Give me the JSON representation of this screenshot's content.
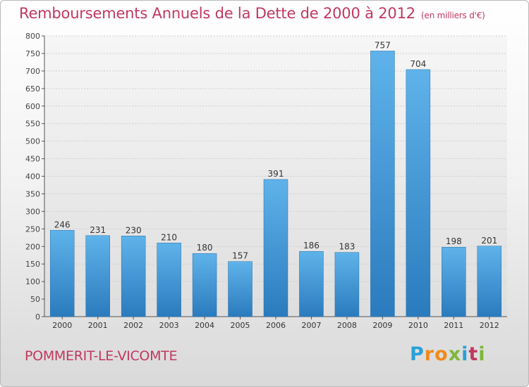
{
  "header": {
    "title": "Remboursements Annuels de la Dette de 2000 à 2012",
    "unit": "(en milliers d'€)"
  },
  "footer": {
    "town": "POMMERIT-LE-VICOMTE",
    "logo_letters": [
      "P",
      "r",
      "o",
      "x",
      "i",
      "t",
      "i"
    ],
    "logo_colors": [
      "#2aa0d8",
      "#f08a1c",
      "#f08a1c",
      "#7cb83a",
      "#2aa0d8",
      "#c0385f",
      "#7cb83a"
    ]
  },
  "chart_data": {
    "type": "bar",
    "categories": [
      "2000",
      "2001",
      "2002",
      "2003",
      "2004",
      "2005",
      "2006",
      "2007",
      "2008",
      "2009",
      "2010",
      "2011",
      "2012"
    ],
    "values": [
      246,
      231,
      230,
      210,
      180,
      157,
      391,
      186,
      183,
      757,
      704,
      198,
      201
    ],
    "title": "Remboursements Annuels de la Dette de 2000 à 2012",
    "ylim": [
      0,
      800
    ],
    "yticks": [
      0,
      50,
      100,
      150,
      200,
      250,
      300,
      350,
      400,
      450,
      500,
      550,
      600,
      650,
      700,
      750,
      800
    ],
    "grid": true,
    "bar_color": "#4a9fdc"
  }
}
